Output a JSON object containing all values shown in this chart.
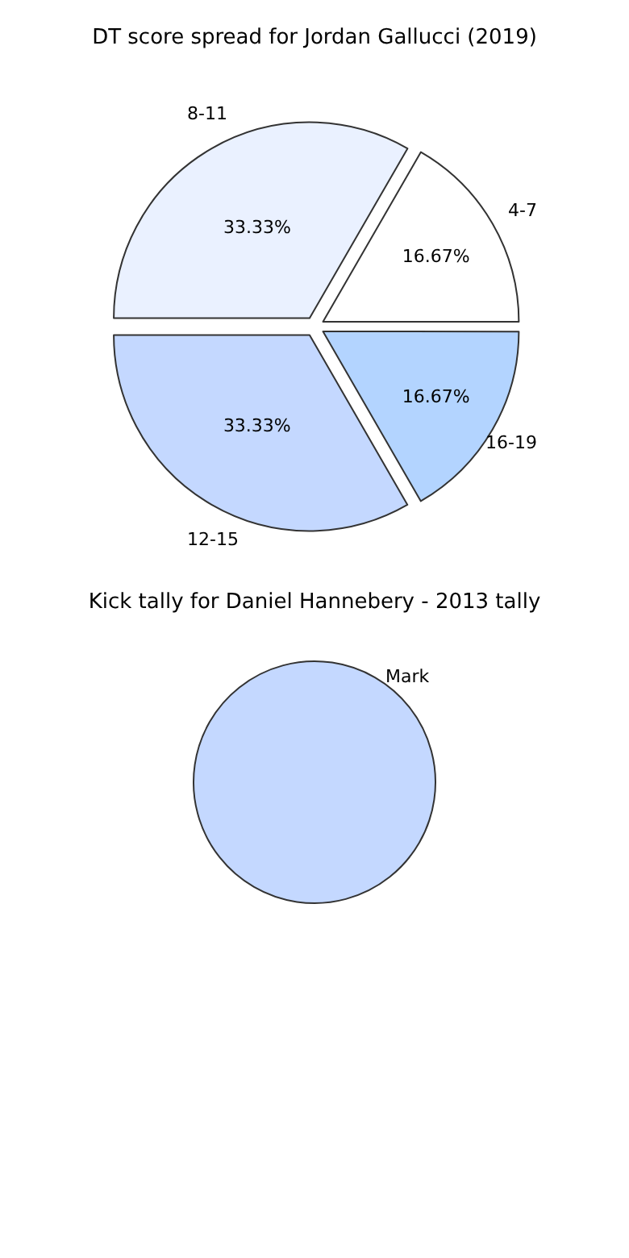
{
  "chart_data": [
    {
      "type": "pie",
      "title": "Kick tally for Daniel Hannebery - 2013 tally",
      "categories": [
        "Mark"
      ],
      "values": [
        100
      ],
      "colors": [
        "#c4d8ff"
      ]
    },
    {
      "type": "pie",
      "title": "DT score spread for Jordan Gallucci (2019)",
      "categories": [
        "4-7",
        "8-11",
        "12-15",
        "16-19"
      ],
      "values": [
        16.67,
        33.33,
        33.33,
        16.67
      ],
      "colors": [
        "#ffffff",
        "#eaf1ff",
        "#c4d8ff",
        "#b3d4ff"
      ],
      "value_labels": [
        "16.67%",
        "33.33%",
        "33.33%",
        "16.67%"
      ]
    }
  ]
}
